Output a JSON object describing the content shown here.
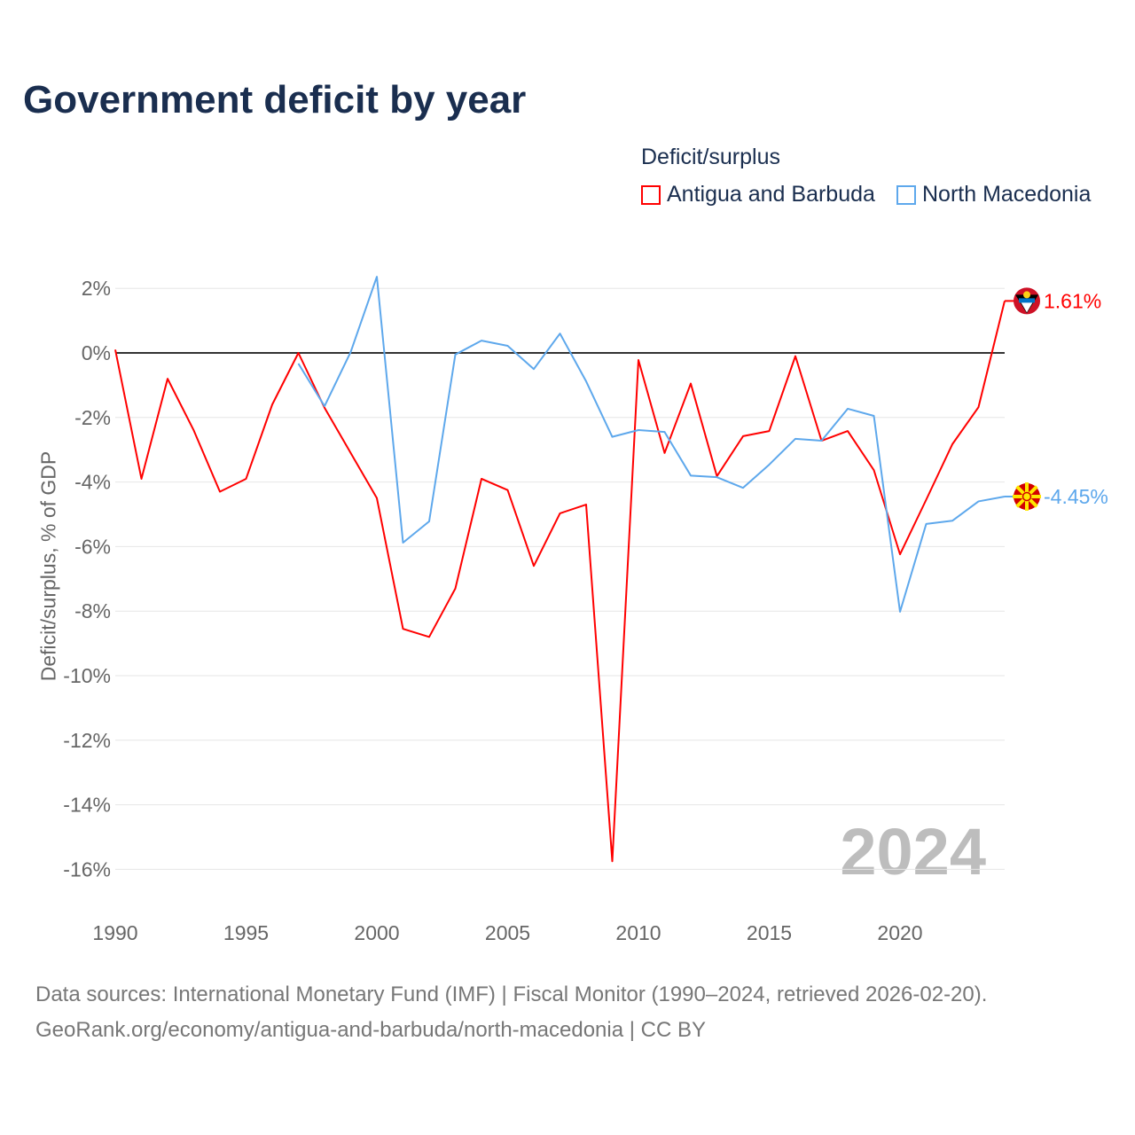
{
  "title": "Government deficit by year",
  "legend_title": "Deficit/surplus",
  "watermark_year": "2024",
  "sources": {
    "line1": "Data sources: International Monetary Fund (IMF) | Fiscal Monitor (1990–2024, retrieved 2026-02-20).",
    "line2": "GeoRank.org/economy/antigua-and-barbuda/north-macedonia | CC BY"
  },
  "chart_data": {
    "type": "line",
    "title": "Government deficit by year",
    "xlabel": "",
    "ylabel": "Deficit/surplus, % of GDP",
    "xlim": [
      1990,
      2024
    ],
    "ylim": [
      -17,
      3
    ],
    "x_ticks": [
      1990,
      1995,
      2000,
      2005,
      2010,
      2015,
      2020
    ],
    "y_ticks": [
      2,
      0,
      -2,
      -4,
      -6,
      -8,
      -10,
      -12,
      -14,
      -16
    ],
    "y_tick_labels": [
      "2%",
      "0%",
      "-2%",
      "-4%",
      "-6%",
      "-8%",
      "-10%",
      "-12%",
      "-14%",
      "-16%"
    ],
    "grid": true,
    "legend_placement": "top-right",
    "series": [
      {
        "name": "Antigua and Barbuda",
        "color": "#ff0000",
        "end_label": "1.61%",
        "x": [
          1990,
          1991,
          1992,
          1993,
          1994,
          1995,
          1996,
          1997,
          1998,
          1999,
          2000,
          2001,
          2002,
          2003,
          2004,
          2005,
          2006,
          2007,
          2008,
          2009,
          2010,
          2011,
          2012,
          2013,
          2014,
          2015,
          2016,
          2017,
          2018,
          2019,
          2020,
          2021,
          2022,
          2023,
          2024
        ],
        "values": [
          0.1,
          -3.9,
          -0.8,
          -2.4,
          -4.3,
          -3.9,
          -1.6,
          0.0,
          -1.7,
          -3.1,
          -4.5,
          -8.55,
          -8.8,
          -7.3,
          -3.9,
          -4.25,
          -6.6,
          -4.97,
          -4.7,
          -15.75,
          -0.22,
          -3.1,
          -0.95,
          -3.82,
          -2.58,
          -2.42,
          -0.1,
          -2.72,
          -2.42,
          -3.63,
          -6.24,
          -4.55,
          -2.83,
          -1.68,
          1.61
        ]
      },
      {
        "name": "North Macedonia",
        "color": "#5ea8ec",
        "end_label": "-4.45%",
        "x": [
          1997,
          1998,
          1999,
          2000,
          2001,
          2002,
          2003,
          2004,
          2005,
          2006,
          2007,
          2008,
          2009,
          2010,
          2011,
          2012,
          2013,
          2014,
          2015,
          2016,
          2017,
          2018,
          2019,
          2020,
          2021,
          2022,
          2023,
          2024
        ],
        "values": [
          -0.33,
          -1.65,
          0.03,
          2.36,
          -5.88,
          -5.22,
          -0.05,
          0.38,
          0.22,
          -0.5,
          0.6,
          -0.88,
          -2.6,
          -2.39,
          -2.45,
          -3.8,
          -3.85,
          -4.18,
          -3.46,
          -2.66,
          -2.72,
          -1.73,
          -1.95,
          -8.02,
          -5.3,
          -5.2,
          -4.6,
          -4.45
        ]
      }
    ]
  }
}
